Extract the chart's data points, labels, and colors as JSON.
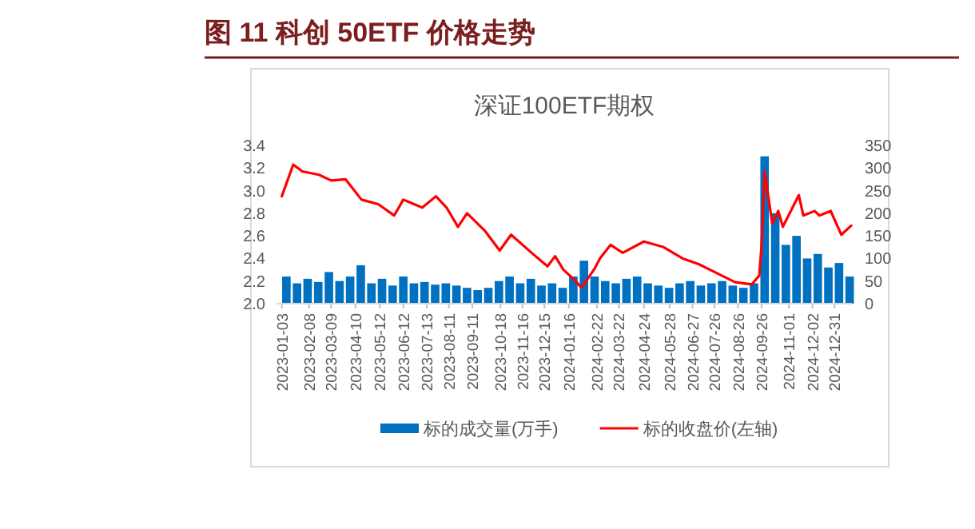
{
  "chart_data": {
    "type": "line",
    "title": "图 11 科创 50ETF 价格走势",
    "subtitle": "深证100ETF期权",
    "xlim": [
      "2022-12-27",
      "2025-01-23"
    ],
    "xticks": [
      "2023-01-03",
      "2023-02-08",
      "2023-03-09",
      "2023-04-10",
      "2023-05-12",
      "2023-06-12",
      "2023-07-13",
      "2023-08-11",
      "2023-09-11",
      "2023-10-18",
      "2023-11-16",
      "2023-12-15",
      "2024-01-16",
      "2024-02-22",
      "2024-03-22",
      "2024-04-24",
      "2024-05-28",
      "2024-06-27",
      "2024-07-26",
      "2024-08-26",
      "2024-09-26",
      "2024-11-01",
      "2024-12-02",
      "2024-12-31"
    ],
    "ylim": [
      2.0,
      3.4
    ],
    "yticks": [
      {
        "value": 2,
        "label": "2.0"
      },
      {
        "value": 2.2,
        "label": "2.2"
      },
      {
        "value": 2.4,
        "label": "2.4"
      },
      {
        "value": 2.6,
        "label": "2.6"
      },
      {
        "value": 2.8,
        "label": "2.8"
      },
      {
        "value": 3,
        "label": "3.0"
      },
      {
        "value": 3.2,
        "label": "3.2"
      },
      {
        "value": 3.4,
        "label": "3.4"
      }
    ],
    "y2lim": [
      0,
      350
    ],
    "y2ticks": [
      0,
      50,
      100,
      150,
      200,
      250,
      300,
      350
    ],
    "legend": "bottom",
    "grid": false,
    "series": [
      {
        "name": "标的成交量(万手)",
        "type": "bar",
        "axis": "y2",
        "color": "#0070c0",
        "x": [
          "2023-01-09",
          "2023-01-23",
          "2023-02-06",
          "2023-02-20",
          "2023-03-06",
          "2023-03-20",
          "2023-04-03",
          "2023-04-17",
          "2023-05-01",
          "2023-05-15",
          "2023-05-29",
          "2023-06-12",
          "2023-06-26",
          "2023-07-10",
          "2023-07-24",
          "2023-08-07",
          "2023-08-21",
          "2023-09-04",
          "2023-09-18",
          "2023-10-02",
          "2023-10-16",
          "2023-10-30",
          "2023-11-13",
          "2023-11-27",
          "2023-12-11",
          "2023-12-25",
          "2024-01-08",
          "2024-01-22",
          "2024-02-05",
          "2024-02-19",
          "2024-03-04",
          "2024-03-18",
          "2024-04-01",
          "2024-04-15",
          "2024-04-29",
          "2024-05-13",
          "2024-05-27",
          "2024-06-10",
          "2024-06-24",
          "2024-07-08",
          "2024-07-22",
          "2024-08-05",
          "2024-08-19",
          "2024-09-02",
          "2024-09-16",
          "2024-09-30",
          "2024-10-14",
          "2024-10-28",
          "2024-11-11",
          "2024-11-25",
          "2024-12-09",
          "2024-12-23",
          "2025-01-06",
          "2025-01-20"
        ],
        "values": [
          60,
          45,
          55,
          48,
          70,
          50,
          60,
          85,
          45,
          55,
          40,
          60,
          45,
          48,
          42,
          45,
          40,
          35,
          30,
          35,
          50,
          60,
          45,
          55,
          40,
          45,
          35,
          60,
          95,
          60,
          50,
          45,
          55,
          60,
          45,
          40,
          35,
          45,
          50,
          40,
          45,
          50,
          40,
          35,
          45,
          326,
          200,
          130,
          150,
          100,
          110,
          80,
          90,
          60
        ]
      },
      {
        "name": "标的收盘价(左轴)",
        "color": "#ff0000",
        "x": [
          "2023-01-03",
          "2023-01-18",
          "2023-01-30",
          "2023-02-21",
          "2023-03-09",
          "2023-03-28",
          "2023-04-18",
          "2023-05-10",
          "2023-05-31",
          "2023-06-12",
          "2023-07-07",
          "2023-07-25",
          "2023-08-08",
          "2023-08-23",
          "2023-09-04",
          "2023-09-28",
          "2023-10-17",
          "2023-11-01",
          "2023-11-28",
          "2023-12-19",
          "2023-12-29",
          "2024-01-09",
          "2024-01-22",
          "2024-02-02",
          "2024-02-19",
          "2024-02-26",
          "2024-03-11",
          "2024-03-27",
          "2024-04-24",
          "2024-05-20",
          "2024-06-14",
          "2024-07-05",
          "2024-07-26",
          "2024-08-22",
          "2024-09-13",
          "2024-09-23",
          "2024-09-26",
          "2024-09-30",
          "2024-10-10",
          "2024-10-18",
          "2024-10-24",
          "2024-11-14",
          "2024-11-20",
          "2024-12-05",
          "2024-12-11",
          "2024-12-26",
          "2025-01-09",
          "2025-01-22"
        ],
        "values": [
          2.95,
          3.23,
          3.17,
          3.14,
          3.09,
          3.1,
          2.92,
          2.88,
          2.78,
          2.92,
          2.85,
          2.95,
          2.85,
          2.68,
          2.8,
          2.64,
          2.47,
          2.61,
          2.45,
          2.33,
          2.42,
          2.3,
          2.22,
          2.14,
          2.31,
          2.4,
          2.52,
          2.45,
          2.55,
          2.5,
          2.4,
          2.35,
          2.28,
          2.19,
          2.17,
          2.25,
          2.52,
          3.17,
          2.71,
          2.82,
          2.68,
          2.96,
          2.78,
          2.82,
          2.78,
          2.82,
          2.61,
          2.69
        ]
      }
    ]
  }
}
